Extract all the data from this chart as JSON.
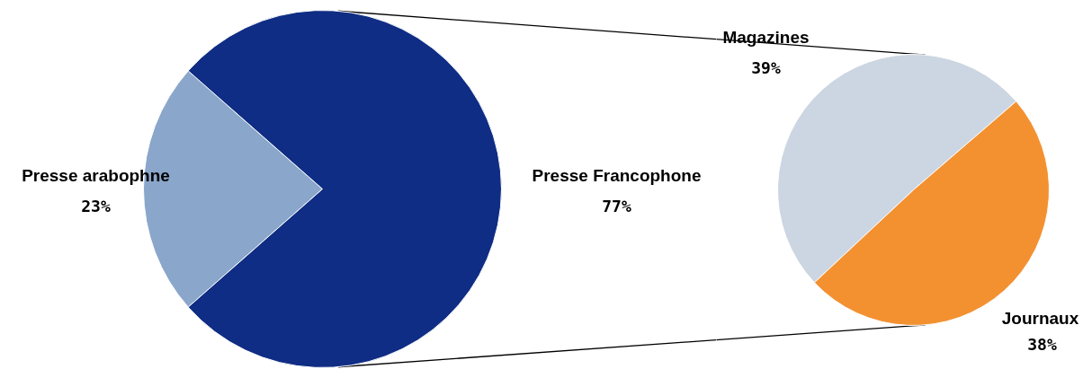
{
  "chart_data": [
    {
      "type": "pie",
      "categories": [
        "Presse arabophne",
        "Presse Francophone"
      ],
      "values": [
        23,
        77
      ],
      "colors": [
        "#8aa6cb",
        "#0f2d84"
      ],
      "value_labels": [
        "23%",
        "77%"
      ]
    },
    {
      "type": "pie",
      "categories": [
        "Magazines",
        "Journaux"
      ],
      "values": [
        39,
        38
      ],
      "colors": [
        "#ccd6e2",
        "#f39131"
      ],
      "value_labels": [
        "39%",
        "38%"
      ]
    }
  ]
}
